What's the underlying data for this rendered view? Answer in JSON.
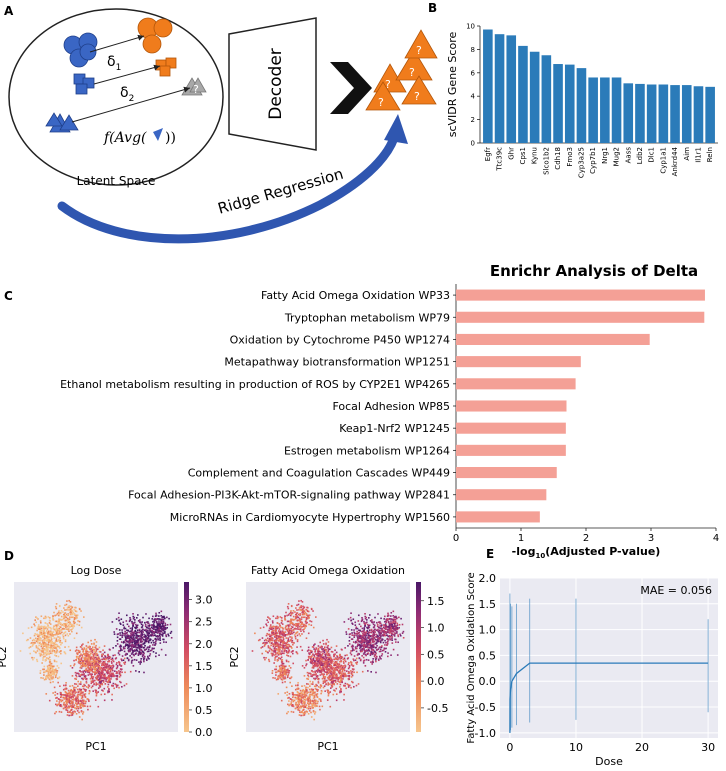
{
  "panels": {
    "a": "A",
    "b": "B",
    "c": "C",
    "d": "D",
    "e": "E"
  },
  "panel_a": {
    "delta1": "δ",
    "delta1_sub": "1",
    "delta2": "δ",
    "delta2_sub": "2",
    "func_text": "f(Avg(",
    "func_close": "))",
    "latent_label": "Latent Space",
    "decoder_label": "Decoder",
    "ridge_label": "Ridge Regression",
    "question": "?",
    "colors": {
      "blue": "#3a66c4",
      "orange": "#f07c1c",
      "gray": "#a8a8a8",
      "arrow_blue": "#2f56b0"
    }
  },
  "chart_data": [
    {
      "id": "scvidr_gene_scores",
      "type": "bar",
      "ylabel": "scVIDR Gene Score",
      "categories": [
        "Egfr",
        "Ttc39c",
        "Ghr",
        "Cps1",
        "Kynu",
        "Slco1b2",
        "Cdh18",
        "Fmo3",
        "Cyp3a25",
        "Cyp7b1",
        "Nrg1",
        "Mug2",
        "Aass",
        "Ldb2",
        "Dlc1",
        "Cyp1a1",
        "Ankrd44",
        "Aim",
        "Il1r1",
        "Reln"
      ],
      "values": [
        9.7,
        9.3,
        9.2,
        8.3,
        7.8,
        7.5,
        6.75,
        6.7,
        6.4,
        5.6,
        5.6,
        5.6,
        5.1,
        5.05,
        5.0,
        5.0,
        4.95,
        4.95,
        4.85,
        4.8
      ],
      "ylim": [
        0,
        10
      ],
      "yticks": [
        0,
        2,
        4,
        6,
        8,
        10
      ],
      "color": "#2b7bb9"
    },
    {
      "id": "enrichr_delta",
      "type": "bar",
      "orientation": "horizontal",
      "title": "Enrichr Analysis of Delta",
      "xlabel_main": "-log",
      "xlabel_sub": "10",
      "xlabel_tail": "(Adjusted P-value)",
      "categories": [
        "Fatty Acid Omega Oxidation WP33",
        "Tryptophan metabolism WP79",
        "Oxidation by Cytochrome P450 WP1274",
        "Metapathway biotransformation WP1251",
        "Ethanol metabolism resulting in production of ROS by CYP2E1 WP4265",
        "Focal Adhesion WP85",
        "Keap1-Nrf2 WP1245",
        "Estrogen metabolism WP1264",
        "Complement and Coagulation Cascades WP449",
        "Focal Adhesion-PI3K-Akt-mTOR-signaling pathway WP2841",
        "MicroRNAs in Cardiomyocyte Hypertrophy WP1560"
      ],
      "values": [
        3.83,
        3.82,
        2.98,
        1.92,
        1.84,
        1.7,
        1.69,
        1.69,
        1.55,
        1.39,
        1.29
      ],
      "xlim": [
        0,
        4
      ],
      "xticks": [
        0,
        1,
        2,
        3,
        4
      ],
      "color": "#f4a096"
    },
    {
      "id": "umap_log_dose",
      "type": "scatter",
      "title": "Log Dose",
      "xlabel": "PC1",
      "ylabel": "PC2",
      "colorbar_ticks": [
        "0.0",
        "0.5",
        "1.0",
        "1.5",
        "2.0",
        "2.5",
        "3.0"
      ],
      "colorbar_range": [
        0.0,
        3.4
      ]
    },
    {
      "id": "umap_faoo",
      "type": "scatter",
      "title": "Fatty Acid Omega Oxidation",
      "xlabel": "PC1",
      "ylabel": "PC2",
      "colorbar_ticks": [
        "-0.5",
        "0.0",
        "0.5",
        "1.0",
        "1.5"
      ],
      "colorbar_range": [
        -0.95,
        1.85
      ]
    },
    {
      "id": "dose_response",
      "type": "line",
      "xlabel": "Dose",
      "ylabel": "Fatty Acid Omega Oxidation Score",
      "annotation": "MAE = 0.056",
      "x": [
        0,
        0.01,
        0.03,
        0.1,
        0.3,
        1,
        3,
        10,
        30
      ],
      "y": [
        -1.0,
        -0.35,
        -0.3,
        -0.15,
        0.0,
        0.15,
        0.35,
        0.35,
        0.35
      ],
      "xlim": [
        -1.5,
        31.5
      ],
      "ylim": [
        -1.1,
        2.0
      ],
      "xticks": [
        0,
        10,
        20,
        30
      ],
      "yticks": [
        -1.0,
        -0.5,
        0.0,
        0.5,
        1.0,
        1.5,
        2.0
      ],
      "dose_points": [
        0,
        0.1,
        0.3,
        1,
        3,
        10,
        30
      ],
      "spread_low": [
        -1.0,
        -0.95,
        -0.9,
        -0.85,
        -0.8,
        -0.75,
        -0.6
      ],
      "spread_high": [
        1.7,
        1.5,
        1.45,
        1.5,
        1.6,
        1.6,
        1.2
      ],
      "color": "#2b7bb9"
    }
  ]
}
